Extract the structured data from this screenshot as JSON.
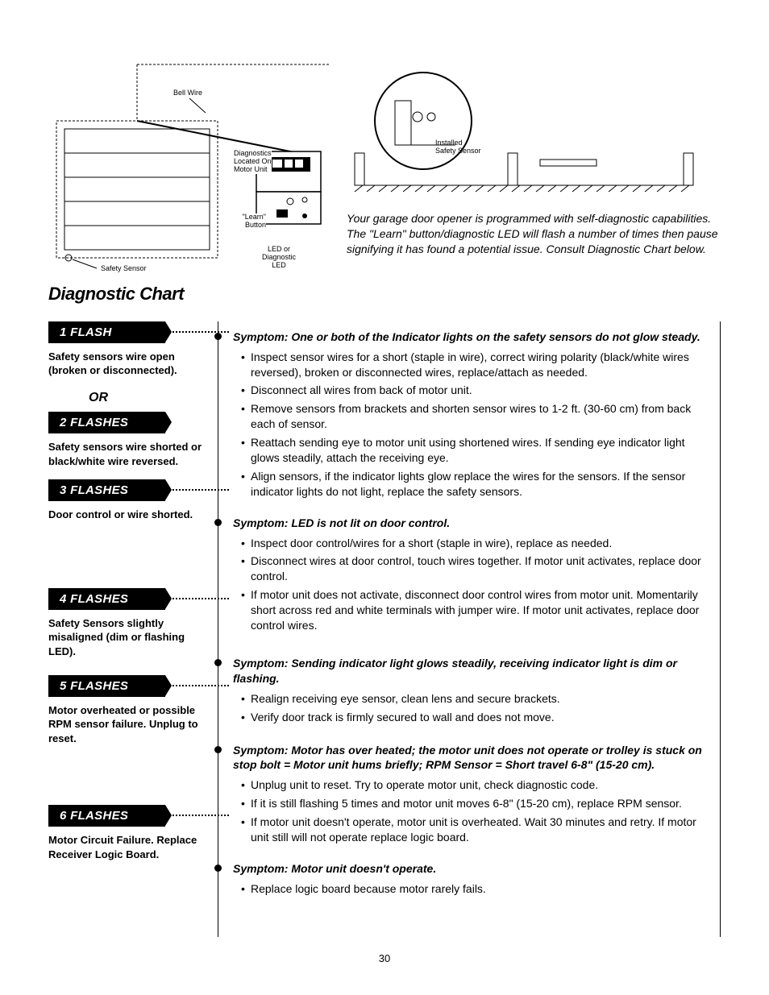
{
  "diagram": {
    "bell_wire": "Bell Wire",
    "diagnostics_label": "Diagnostics\nLocated On\nMotor Unit",
    "learn_button": "\"Learn\"\nButton",
    "led_label": "LED or\nDiagnostic\nLED",
    "safety_sensor_left": "Safety Sensor",
    "installed_sensor": "Installed\nSafety Sensor"
  },
  "intro": "Your garage door opener is programmed with self-diagnostic capabilities. The \"Learn\" button/diagnostic LED will flash a number of times then pause signifying it has found a potential issue. Consult Diagnostic Chart below.",
  "chart_title": "Diagnostic Chart",
  "or_label": "OR",
  "flashes": {
    "f1": {
      "title": "1 FLASH",
      "cause": "Safety sensors wire open (broken or disconnected)."
    },
    "f2": {
      "title": "2 FLASHES",
      "cause": "Safety sensors wire shorted or black/white wire reversed."
    },
    "f3": {
      "title": "3 FLASHES",
      "cause": "Door control or wire shorted."
    },
    "f4": {
      "title": "4 FLASHES",
      "cause": "Safety Sensors slightly misaligned (dim or flashing LED)."
    },
    "f5": {
      "title": "5 FLASHES",
      "cause": "Motor overheated or possible RPM sensor failure. Unplug to reset."
    },
    "f6": {
      "title": "6 FLASHES",
      "cause": "Motor Circuit Failure. Replace Receiver Logic Board."
    }
  },
  "symptoms": {
    "s1": {
      "title": "Symptom: One or both of the Indicator lights on the safety sensors do not glow steady.",
      "items": [
        "Inspect sensor wires for a short (staple in wire), correct wiring polarity (black/white wires reversed), broken or disconnected wires, replace/attach as needed.",
        "Disconnect all wires from back of motor unit.",
        "Remove sensors from brackets and shorten sensor wires to 1-2 ft. (30-60 cm) from back each of sensor.",
        "Reattach sending eye to motor unit using shortened wires. If sending eye indicator light glows steadily, attach the receiving eye.",
        "Align sensors, if the indicator lights glow replace the wires for the sensors. If the sensor indicator lights do not light, replace the safety sensors."
      ]
    },
    "s3": {
      "title": "Symptom: LED is not lit on door control.",
      "items": [
        "Inspect door control/wires for a short (staple in wire), replace as needed.",
        "Disconnect wires at door control, touch wires together. If motor unit activates, replace door control.",
        "If motor unit does not activate, disconnect door control wires from motor unit. Momentarily short across red and white terminals with jumper wire. If motor unit activates, replace door control wires."
      ]
    },
    "s4": {
      "title": "Symptom: Sending indicator light glows steadily, receiving indicator light is dim or flashing.",
      "items": [
        "Realign receiving eye sensor, clean lens and secure brackets.",
        "Verify door track is firmly secured to wall and does not move."
      ]
    },
    "s5": {
      "title": "Symptom: Motor has over heated; the motor unit does not operate or trolley is stuck on stop bolt = Motor unit hums briefly; RPM Sensor = Short travel 6-8\" (15-20 cm).",
      "items": [
        "Unplug unit to reset. Try to operate motor unit, check diagnostic code.",
        "If it is still flashing 5 times and motor unit moves 6-8\" (15-20 cm), replace RPM sensor.",
        "If motor unit doesn't operate, motor unit is overheated. Wait 30 minutes and retry. If motor unit still will not operate replace logic board."
      ]
    },
    "s6": {
      "title": "Symptom: Motor unit doesn't operate.",
      "items": [
        "Replace logic board because motor rarely fails."
      ]
    }
  },
  "page_number": "30",
  "colors": {
    "block_bg": "#000000",
    "block_fg": "#ffffff",
    "text": "#000000",
    "bg": "#ffffff"
  }
}
